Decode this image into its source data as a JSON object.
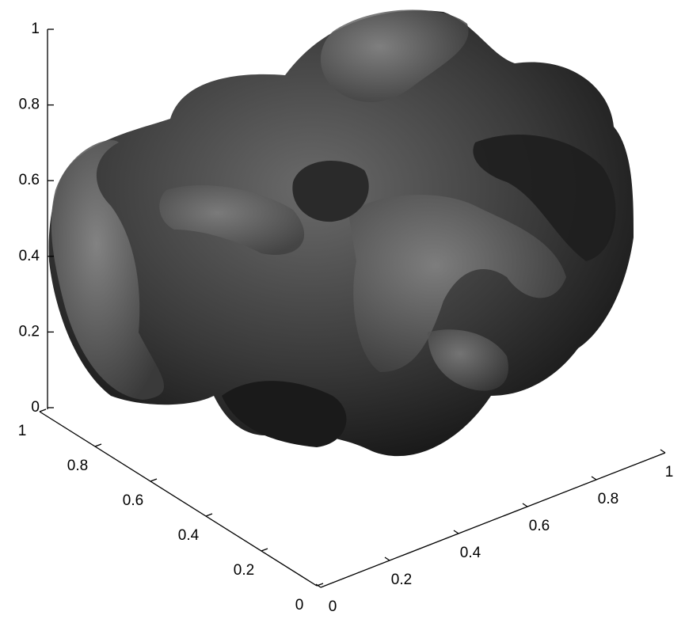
{
  "chart_data": {
    "type": "isosurface",
    "xlim": [
      0,
      1
    ],
    "xticks": [
      0,
      0.2,
      0.4,
      0.6,
      0.8,
      1
    ],
    "ylim": [
      0,
      1
    ],
    "yticks": [
      0,
      0.2,
      0.4,
      0.6,
      0.8,
      1
    ],
    "zlim": [
      0,
      1
    ],
    "zticks": [
      0,
      0.2,
      0.4,
      0.6,
      0.8,
      1
    ]
  }
}
